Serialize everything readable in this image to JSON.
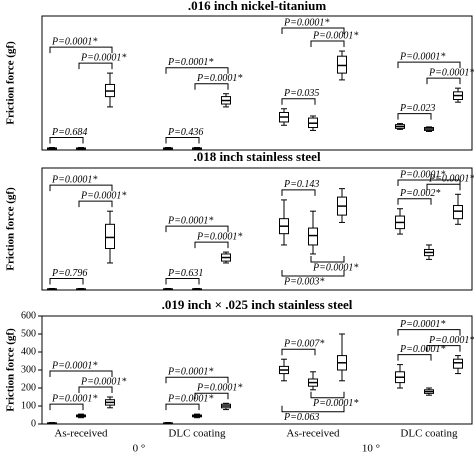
{
  "chart_data": [
    {
      "type": "box",
      "title": ".016 inch nickel-titanium",
      "y_label": "Friction force (gf)",
      "ylim": [
        0,
        650
      ],
      "boxes": [
        {
          "whislo": 4,
          "q1": 6,
          "med": 8,
          "q3": 10,
          "whishi": 12
        },
        {
          "whislo": 4,
          "q1": 6,
          "med": 8,
          "q3": 10,
          "whishi": 12
        },
        {
          "whislo": 209,
          "q1": 259,
          "med": 286,
          "q3": 318,
          "whishi": 373
        },
        {
          "whislo": 4,
          "q1": 6,
          "med": 8,
          "q3": 10,
          "whishi": 12
        },
        {
          "whislo": 4,
          "q1": 6,
          "med": 8,
          "q3": 10,
          "whishi": 12
        },
        {
          "whislo": 209,
          "q1": 223,
          "med": 240,
          "q3": 259,
          "whishi": 273
        },
        {
          "whislo": 120,
          "q1": 136,
          "med": 160,
          "q3": 182,
          "whishi": 200
        },
        {
          "whislo": 95,
          "q1": 109,
          "med": 130,
          "q3": 155,
          "whishi": 165
        },
        {
          "whislo": 340,
          "q1": 373,
          "med": 410,
          "q3": 455,
          "whishi": 480
        },
        {
          "whislo": 100,
          "q1": 105,
          "med": 114,
          "q3": 123,
          "whishi": 128
        },
        {
          "whislo": 90,
          "q1": 95,
          "med": 102,
          "q3": 109,
          "whishi": 112
        },
        {
          "whislo": 232,
          "q1": 245,
          "med": 264,
          "q3": 282,
          "whishi": 300
        }
      ],
      "comparisons": [
        {
          "pair": [
            1,
            2
          ],
          "label": "P=0.0001*",
          "side": "above"
        },
        {
          "pair": [
            0,
            1
          ],
          "label": "P=0.684",
          "side": "above"
        },
        {
          "pair": [
            0,
            2
          ],
          "label": "P=0.0001*",
          "side": "above"
        },
        {
          "pair": [
            4,
            5
          ],
          "label": "P=0.0001*",
          "side": "above"
        },
        {
          "pair": [
            3,
            4
          ],
          "label": "P=0.436",
          "side": "above"
        },
        {
          "pair": [
            3,
            5
          ],
          "label": "P=0.0001*",
          "side": "above"
        },
        {
          "pair": [
            7,
            8
          ],
          "label": "P=0.0001*",
          "side": "above"
        },
        {
          "pair": [
            6,
            7
          ],
          "label": "P=0.035",
          "side": "above"
        },
        {
          "pair": [
            6,
            8
          ],
          "label": "P=0.0001*",
          "side": "above"
        },
        {
          "pair": [
            10,
            11
          ],
          "label": "P=0.0001*",
          "side": "above"
        },
        {
          "pair": [
            9,
            10
          ],
          "label": "P=0.023",
          "side": "above"
        },
        {
          "pair": [
            9,
            11
          ],
          "label": "P=0.0001*",
          "side": "above"
        }
      ]
    },
    {
      "type": "box",
      "title": ".018 inch stainless steel",
      "y_label": "Friction force (gf)",
      "ylim": [
        0,
        650
      ],
      "boxes": [
        {
          "whislo": 2,
          "q1": 4,
          "med": 5,
          "q3": 6,
          "whishi": 8
        },
        {
          "whislo": 2,
          "q1": 4,
          "med": 5,
          "q3": 6,
          "whishi": 8
        },
        {
          "whislo": 144,
          "q1": 221,
          "med": 280,
          "q3": 350,
          "whishi": 420
        },
        {
          "whislo": 2,
          "q1": 4,
          "med": 5,
          "q3": 6,
          "whishi": 8
        },
        {
          "whislo": 2,
          "q1": 4,
          "med": 5,
          "q3": 6,
          "whishi": 8
        },
        {
          "whislo": 144,
          "q1": 154,
          "med": 173,
          "q3": 192,
          "whishi": 202
        },
        {
          "whislo": 240,
          "q1": 300,
          "med": 340,
          "q3": 380,
          "whishi": 480
        },
        {
          "whislo": 192,
          "q1": 240,
          "med": 290,
          "q3": 330,
          "whishi": 420
        },
        {
          "whislo": 360,
          "q1": 399,
          "med": 447,
          "q3": 495,
          "whishi": 540
        },
        {
          "whislo": 298,
          "q1": 327,
          "med": 360,
          "q3": 394,
          "whishi": 433
        },
        {
          "whislo": 163,
          "q1": 183,
          "med": 200,
          "q3": 216,
          "whishi": 240
        },
        {
          "whislo": 350,
          "q1": 380,
          "med": 420,
          "q3": 450,
          "whishi": 510
        }
      ],
      "comparisons": [
        {
          "pair": [
            1,
            2
          ],
          "label": "P=0.0001*",
          "side": "above"
        },
        {
          "pair": [
            0,
            1
          ],
          "label": "P=0.796",
          "side": "above"
        },
        {
          "pair": [
            0,
            2
          ],
          "label": "P=0.0001*",
          "side": "above"
        },
        {
          "pair": [
            4,
            5
          ],
          "label": "P=0.0001*",
          "side": "above"
        },
        {
          "pair": [
            3,
            4
          ],
          "label": "P=0.631",
          "side": "above"
        },
        {
          "pair": [
            3,
            5
          ],
          "label": "P=0.0001*",
          "side": "above"
        },
        {
          "pair": [
            6,
            7
          ],
          "label": "P=0.143",
          "side": "above"
        },
        {
          "pair": [
            7,
            8
          ],
          "label": "P=0.0001*",
          "side": "below"
        },
        {
          "pair": [
            6,
            8
          ],
          "label": "P=0.003*",
          "side": "below"
        },
        {
          "pair": [
            10,
            11
          ],
          "label": "P=0.0001*",
          "side": "above"
        },
        {
          "pair": [
            9,
            10
          ],
          "label": "P=0.002*",
          "side": "above"
        },
        {
          "pair": [
            9,
            11
          ],
          "label": "P=0.0001*",
          "side": "above"
        }
      ]
    },
    {
      "type": "box",
      "title": ".019 inch × .025 inch stainless steel",
      "y_label": "Friction force (gf)",
      "ylim": [
        0,
        600
      ],
      "yticks": [
        0,
        100,
        200,
        300,
        400,
        500,
        600
      ],
      "group_labels": [
        "As-received",
        "DLC coating",
        "As-received",
        "DLC coating"
      ],
      "angle_labels": [
        "0 °",
        "10 °"
      ],
      "boxes": [
        {
          "whislo": 2,
          "q1": 3,
          "med": 5,
          "q3": 6,
          "whishi": 8
        },
        {
          "whislo": 35,
          "q1": 40,
          "med": 45,
          "q3": 50,
          "whishi": 55
        },
        {
          "whislo": 90,
          "q1": 105,
          "med": 120,
          "q3": 135,
          "whishi": 150
        },
        {
          "whislo": 2,
          "q1": 3,
          "med": 5,
          "q3": 6,
          "whishi": 8
        },
        {
          "whislo": 35,
          "q1": 40,
          "med": 45,
          "q3": 50,
          "whishi": 55
        },
        {
          "whislo": 80,
          "q1": 90,
          "med": 100,
          "q3": 110,
          "whishi": 115
        },
        {
          "whislo": 240,
          "q1": 280,
          "med": 300,
          "q3": 320,
          "whishi": 360
        },
        {
          "whislo": 190,
          "q1": 210,
          "med": 230,
          "q3": 250,
          "whishi": 290
        },
        {
          "whislo": 240,
          "q1": 300,
          "med": 340,
          "q3": 380,
          "whishi": 500
        },
        {
          "whislo": 200,
          "q1": 230,
          "med": 260,
          "q3": 290,
          "whishi": 330
        },
        {
          "whislo": 160,
          "q1": 170,
          "med": 180,
          "q3": 190,
          "whishi": 200
        },
        {
          "whislo": 280,
          "q1": 310,
          "med": 340,
          "q3": 360,
          "whishi": 380
        }
      ],
      "comparisons": [
        {
          "pair": [
            1,
            2
          ],
          "label": "P=0.0001*",
          "side": "above"
        },
        {
          "pair": [
            0,
            1
          ],
          "label": "P=0.0001*",
          "side": "above"
        },
        {
          "pair": [
            0,
            2
          ],
          "label": "P=0.0001*",
          "side": "above"
        },
        {
          "pair": [
            4,
            5
          ],
          "label": "P=0.0001*",
          "side": "above"
        },
        {
          "pair": [
            3,
            4
          ],
          "label": "P=0.0001*",
          "side": "above"
        },
        {
          "pair": [
            3,
            5
          ],
          "label": "P=0.0001*",
          "side": "above"
        },
        {
          "pair": [
            6,
            7
          ],
          "label": "P=0.007*",
          "side": "above"
        },
        {
          "pair": [
            7,
            8
          ],
          "label": "P=0.0001*",
          "side": "below"
        },
        {
          "pair": [
            6,
            8
          ],
          "label": "P=0.063",
          "side": "below"
        },
        {
          "pair": [
            10,
            11
          ],
          "label": "P=0.0001*",
          "side": "above"
        },
        {
          "pair": [
            9,
            10
          ],
          "label": "P=0.0001*",
          "side": "above"
        },
        {
          "pair": [
            9,
            11
          ],
          "label": "P=0.0001*",
          "side": "above"
        }
      ]
    }
  ]
}
